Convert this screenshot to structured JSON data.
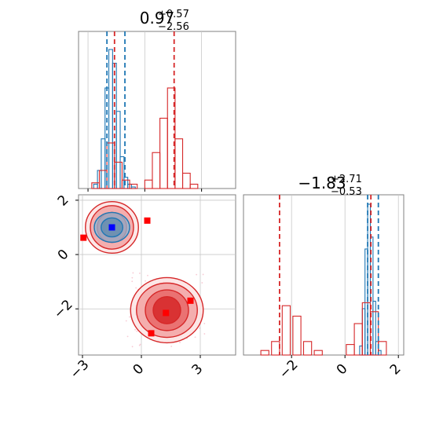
{
  "chart_data": [
    {
      "type": "histogram",
      "panel": "x-marginal",
      "title": {
        "value": "0.97",
        "plus": "+0.57",
        "minus": "−2.56"
      },
      "xlim": [
        -3.5,
        4.8
      ],
      "series": [
        {
          "name": "",
          "color": "#1f77b4",
          "bins_center": [
            -2.6,
            -2.4,
            -2.2,
            -2.0,
            -1.8,
            -1.6,
            -1.4,
            -1.2,
            -1.0,
            -0.8,
            -0.6
          ],
          "heights": [
            0.02,
            0.12,
            0.35,
            0.72,
            1.0,
            0.9,
            0.55,
            0.22,
            0.07,
            0.02,
            0.0
          ]
        },
        {
          "name": "",
          "color": "#d62728",
          "bins_center": [
            -2.6,
            -2.2,
            -1.8,
            -1.4,
            -1.0,
            -0.6,
            0.2,
            0.6,
            1.0,
            1.4,
            1.8,
            2.2,
            2.6
          ],
          "heights": [
            0.03,
            0.12,
            0.32,
            0.18,
            0.05,
            0.02,
            0.05,
            0.25,
            0.5,
            0.72,
            0.35,
            0.1,
            0.02
          ]
        }
      ],
      "dashed_lines": [
        {
          "color": "#1f77b4",
          "x": [
            -2.0,
            -1.05
          ]
        },
        {
          "color": "#d62728",
          "x": [
            -1.6,
            1.55
          ]
        }
      ]
    },
    {
      "type": "scatter",
      "panel": "joint",
      "xlim": [
        -3.2,
        4.8
      ],
      "ylim": [
        -3.7,
        2.2
      ],
      "xticks": [
        -3,
        0,
        3
      ],
      "yticks": [
        2,
        0,
        -2
      ],
      "grid": true,
      "contours": [
        {
          "color": "#d62728",
          "cx": -1.5,
          "cy": 1.0,
          "rx": [
            1.35,
            1.1,
            0.75,
            0.45
          ],
          "ry": [
            0.95,
            0.8,
            0.55,
            0.35
          ]
        },
        {
          "color": "#d62728",
          "cx": 1.3,
          "cy": -2.05,
          "rx": [
            1.85,
            1.55,
            1.1,
            0.7
          ],
          "ry": [
            1.2,
            1.0,
            0.75,
            0.5
          ]
        },
        {
          "color": "#1f77b4",
          "cx": -1.5,
          "cy": 1.0,
          "rx": [
            0.9,
            0.55
          ],
          "ry": [
            0.55,
            0.35
          ]
        }
      ],
      "points": [
        {
          "x": -1.5,
          "y": 1.0,
          "color": "#0000ff"
        },
        {
          "x": -2.95,
          "y": 0.62,
          "color": "#ff0000"
        },
        {
          "x": 0.3,
          "y": 1.25,
          "color": "#ff0000"
        },
        {
          "x": 2.5,
          "y": -1.7,
          "color": "#ff0000"
        },
        {
          "x": 1.25,
          "y": -2.15,
          "color": "#ff0000"
        },
        {
          "x": 0.5,
          "y": -2.9,
          "color": "#ff0000"
        }
      ]
    },
    {
      "type": "histogram",
      "panel": "y-marginal",
      "title": {
        "value": "−1.83",
        "plus": "+2.71",
        "minus": "−0.53"
      },
      "xlim": [
        -3.8,
        2.2
      ],
      "xticks": [
        -2,
        0,
        2
      ],
      "series": [
        {
          "name": "",
          "color": "#1f77b4",
          "bins_center": [
            0.6,
            0.7,
            0.8,
            0.9,
            1.0,
            1.1,
            1.2,
            1.3
          ],
          "heights": [
            0.05,
            0.3,
            0.7,
            1.0,
            0.78,
            0.35,
            0.08,
            0.02
          ]
        },
        {
          "name": "",
          "color": "#d62728",
          "bins_center": [
            -3.0,
            -2.6,
            -2.2,
            -1.8,
            -1.4,
            -1.0,
            0.2,
            0.5,
            0.8,
            1.1,
            1.4
          ],
          "heights": [
            0.02,
            0.08,
            0.32,
            0.25,
            0.08,
            0.02,
            0.06,
            0.2,
            0.34,
            0.28,
            0.08
          ]
        }
      ],
      "dashed_lines": [
        {
          "color": "#1f77b4",
          "x": [
            0.85,
            1.25
          ]
        },
        {
          "color": "#d62728",
          "x": [
            -2.45,
            0.97
          ]
        }
      ]
    }
  ]
}
